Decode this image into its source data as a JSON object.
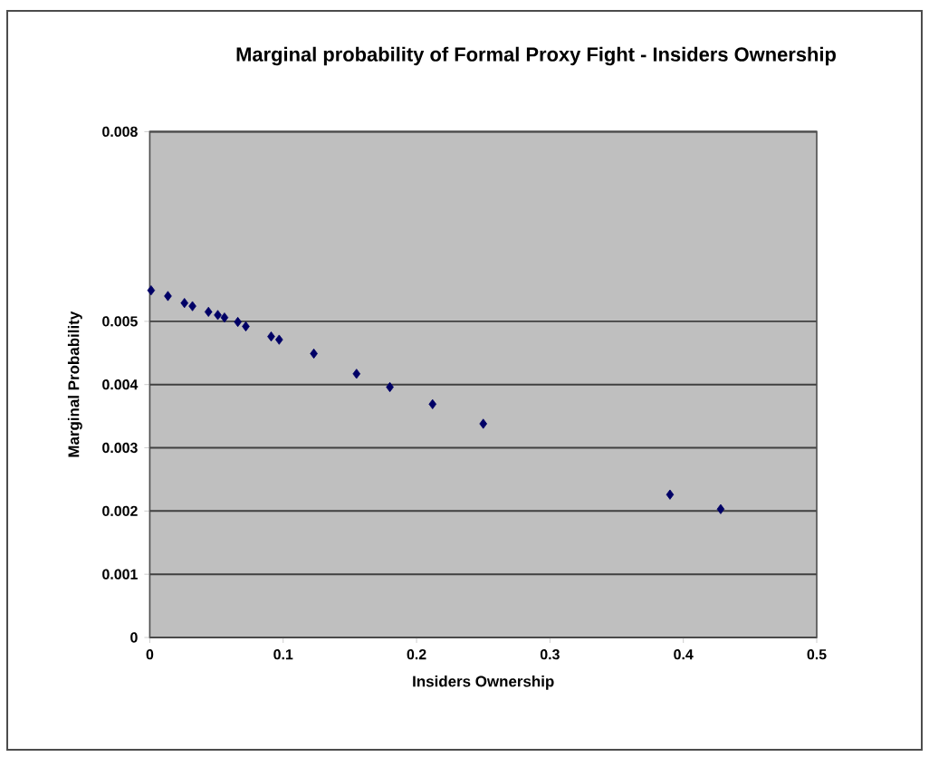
{
  "chart_data": {
    "type": "scatter",
    "title": "Marginal probability of Formal Proxy Fight - Insiders Ownership",
    "xlabel": "Insiders Ownership",
    "ylabel": "Marginal Probability",
    "x": [
      0.001,
      0.0136,
      0.026,
      0.032,
      0.044,
      0.051,
      0.056,
      0.066,
      0.072,
      0.091,
      0.097,
      0.123,
      0.155,
      0.18,
      0.212,
      0.25,
      0.39,
      0.428
    ],
    "values": [
      0.00549,
      0.0054,
      0.00529,
      0.00524,
      0.00515,
      0.0051,
      0.00506,
      0.00499,
      0.00492,
      0.00476,
      0.00471,
      0.00449,
      0.00417,
      0.00396,
      0.00369,
      0.00338,
      0.00226,
      0.00203
    ],
    "color": "#000066",
    "marker": "diamond",
    "grid": "y",
    "xlim": [
      0,
      0.5
    ],
    "xticks": [
      0,
      0.1,
      0.2,
      0.3,
      0.4,
      0.5
    ],
    "ylim": [
      0,
      0.008
    ],
    "yticks": [
      0,
      0.001,
      0.002,
      0.003,
      0.004,
      0.005,
      0.008
    ]
  }
}
